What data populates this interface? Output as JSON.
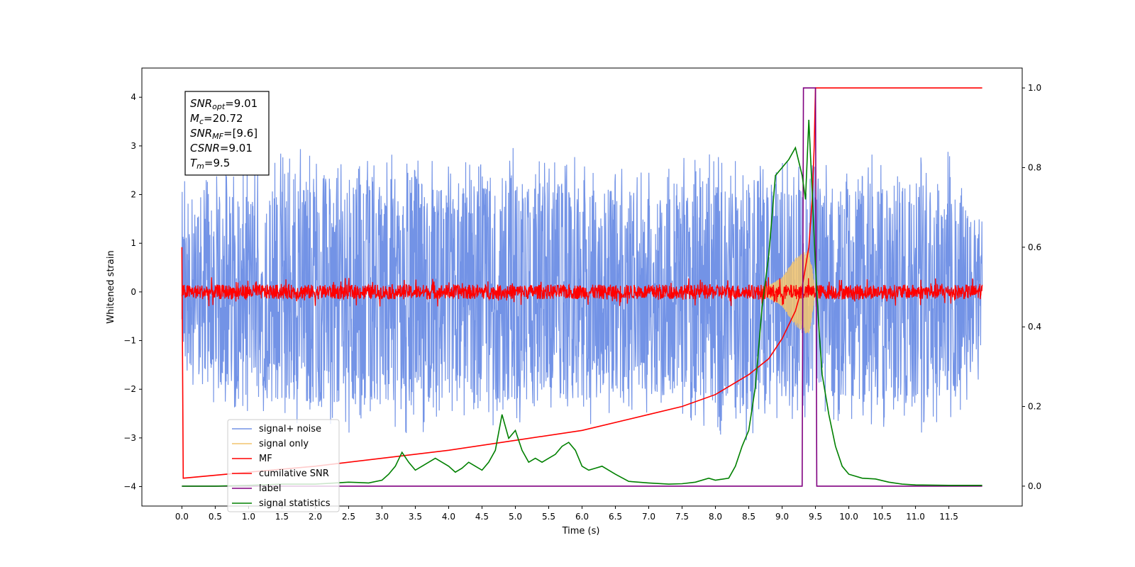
{
  "chart_data": {
    "type": "line",
    "xlabel": "Time (s)",
    "ylabel": "Whitened strain",
    "xlim": [
      -0.6,
      12.6
    ],
    "ylim": [
      -4.4,
      4.6
    ],
    "ylim_right": [
      -0.05,
      1.05
    ],
    "x_ticks": [
      0.0,
      0.5,
      1.0,
      1.5,
      2.0,
      2.5,
      3.0,
      3.5,
      4.0,
      4.5,
      5.0,
      5.5,
      6.0,
      6.5,
      7.0,
      7.5,
      8.0,
      8.5,
      9.0,
      9.5,
      10.0,
      10.5,
      11.0,
      11.5
    ],
    "x_tick_labels": [
      "0.0",
      "0.5",
      "1.0",
      "1.5",
      "2.0",
      "2.5",
      "3.0",
      "3.5",
      "4.0",
      "4.5",
      "5.0",
      "5.5",
      "6.0",
      "6.5",
      "7.0",
      "7.5",
      "8.0",
      "8.5",
      "9.0",
      "9.5",
      "10.0",
      "10.5",
      "11.0",
      "11.5"
    ],
    "y_ticks": [
      4,
      3,
      2,
      1,
      0,
      -1,
      -2,
      -3,
      -4
    ],
    "y_tick_labels": [
      "4",
      "3",
      "2",
      "1",
      "0",
      "−1",
      "−2",
      "−3",
      "−4"
    ],
    "y_right_ticks": [
      1.0,
      0.8,
      0.6,
      0.4,
      0.2,
      0.0
    ],
    "y_right_tick_labels": [
      "1.0",
      "0.8",
      "0.6",
      "0.4",
      "0.2",
      "0.0"
    ],
    "grid": false,
    "legend_position": "lower-left",
    "annotation": [
      {
        "symbol": "SNR",
        "sub": "opt",
        "value": "=9.01"
      },
      {
        "symbol": "M",
        "sub": "c",
        "value": "=20.72"
      },
      {
        "symbol": "SNR",
        "sub": "MF",
        "value": "=[9.6]"
      },
      {
        "symbol": "CSNR",
        "sub": "",
        "value": "=9.01"
      },
      {
        "symbol": "T",
        "sub": "m",
        "value": "=9.5"
      }
    ],
    "series": [
      {
        "name": "signal+ noise",
        "color": "#7393e6",
        "axis": "left",
        "x": [
          0.0,
          0.5,
          1.0,
          1.5,
          2.0,
          2.5,
          3.0,
          3.5,
          4.0,
          4.5,
          5.0,
          5.5,
          6.0,
          6.5,
          7.0,
          7.5,
          8.0,
          8.5,
          9.0,
          9.5,
          10.0,
          10.5,
          11.0,
          11.5,
          12.0
        ],
        "y_upper": [
          2.4,
          2.6,
          2.7,
          2.9,
          3.1,
          2.8,
          3.0,
          2.9,
          2.6,
          2.8,
          3.1,
          2.7,
          2.8,
          2.6,
          2.5,
          2.8,
          2.9,
          2.8,
          2.7,
          2.7,
          2.7,
          2.9,
          2.8,
          2.9,
          1.5
        ],
        "y_lower": [
          -1.8,
          -2.3,
          -2.5,
          -2.7,
          -2.9,
          -3.0,
          -2.8,
          -3.2,
          -2.6,
          -2.7,
          -2.9,
          -2.6,
          -2.8,
          -2.6,
          -2.5,
          -2.7,
          -2.9,
          -3.1,
          -2.6,
          -2.8,
          -2.7,
          -2.9,
          -3.2,
          -2.8,
          -1.8
        ]
      },
      {
        "name": "signal only",
        "color": "#f2c46d",
        "axis": "left",
        "x": [
          8.7,
          9.0,
          9.2,
          9.4,
          9.45,
          9.5
        ],
        "amplitude": [
          0.05,
          0.3,
          0.7,
          0.9,
          0.5,
          0.0
        ]
      },
      {
        "name": "MF",
        "color": "#ff0000",
        "axis": "left",
        "x": [
          0.0,
          12.0
        ],
        "amplitude": 0.15
      },
      {
        "name": "cumilative SNR",
        "color": "#ff0000",
        "axis": "right",
        "x": [
          0.0,
          0.02,
          1.0,
          2.0,
          3.0,
          4.0,
          5.0,
          6.0,
          7.0,
          7.5,
          8.0,
          8.5,
          8.8,
          9.0,
          9.2,
          9.3,
          9.4,
          9.45,
          9.48,
          9.5,
          9.55,
          10.0,
          11.0,
          12.0
        ],
        "y": [
          0.6,
          0.02,
          0.035,
          0.05,
          0.07,
          0.09,
          0.115,
          0.14,
          0.18,
          0.2,
          0.23,
          0.28,
          0.32,
          0.37,
          0.44,
          0.5,
          0.6,
          0.72,
          0.85,
          1.0,
          1.0,
          1.0,
          1.0,
          1.0
        ]
      },
      {
        "name": "label",
        "color": "#800080",
        "axis": "right",
        "x": [
          0.0,
          9.3,
          9.32,
          9.5,
          9.52,
          12.0
        ],
        "y": [
          0.0,
          0.0,
          1.0,
          1.0,
          0.0,
          0.0
        ]
      },
      {
        "name": "signal statistics",
        "color": "#008000",
        "axis": "right",
        "x": [
          0.0,
          0.5,
          1.0,
          1.5,
          2.0,
          2.3,
          2.5,
          2.8,
          3.0,
          3.1,
          3.2,
          3.3,
          3.4,
          3.5,
          3.6,
          3.7,
          3.8,
          3.9,
          4.0,
          4.1,
          4.2,
          4.3,
          4.4,
          4.5,
          4.6,
          4.7,
          4.8,
          4.9,
          5.0,
          5.1,
          5.2,
          5.3,
          5.4,
          5.5,
          5.6,
          5.7,
          5.8,
          5.9,
          6.0,
          6.1,
          6.2,
          6.3,
          6.4,
          6.5,
          6.7,
          7.0,
          7.3,
          7.5,
          7.7,
          7.9,
          8.0,
          8.2,
          8.3,
          8.4,
          8.5,
          8.6,
          8.7,
          8.8,
          8.9,
          9.0,
          9.1,
          9.2,
          9.3,
          9.35,
          9.4,
          9.45,
          9.5,
          9.55,
          9.6,
          9.7,
          9.8,
          9.9,
          10.0,
          10.2,
          10.4,
          10.6,
          10.8,
          11.0,
          11.5,
          12.0
        ],
        "y": [
          0.0,
          0.0,
          0.002,
          0.005,
          0.005,
          0.008,
          0.01,
          0.008,
          0.015,
          0.03,
          0.05,
          0.085,
          0.06,
          0.04,
          0.05,
          0.06,
          0.07,
          0.06,
          0.05,
          0.035,
          0.045,
          0.06,
          0.05,
          0.04,
          0.06,
          0.09,
          0.18,
          0.12,
          0.14,
          0.09,
          0.06,
          0.07,
          0.06,
          0.07,
          0.08,
          0.1,
          0.11,
          0.09,
          0.05,
          0.04,
          0.045,
          0.05,
          0.04,
          0.03,
          0.012,
          0.008,
          0.005,
          0.006,
          0.01,
          0.02,
          0.015,
          0.02,
          0.05,
          0.1,
          0.14,
          0.25,
          0.45,
          0.58,
          0.78,
          0.8,
          0.82,
          0.85,
          0.78,
          0.72,
          0.92,
          0.74,
          0.55,
          0.4,
          0.28,
          0.18,
          0.1,
          0.05,
          0.03,
          0.02,
          0.018,
          0.01,
          0.005,
          0.003,
          0.002,
          0.002
        ]
      }
    ]
  }
}
